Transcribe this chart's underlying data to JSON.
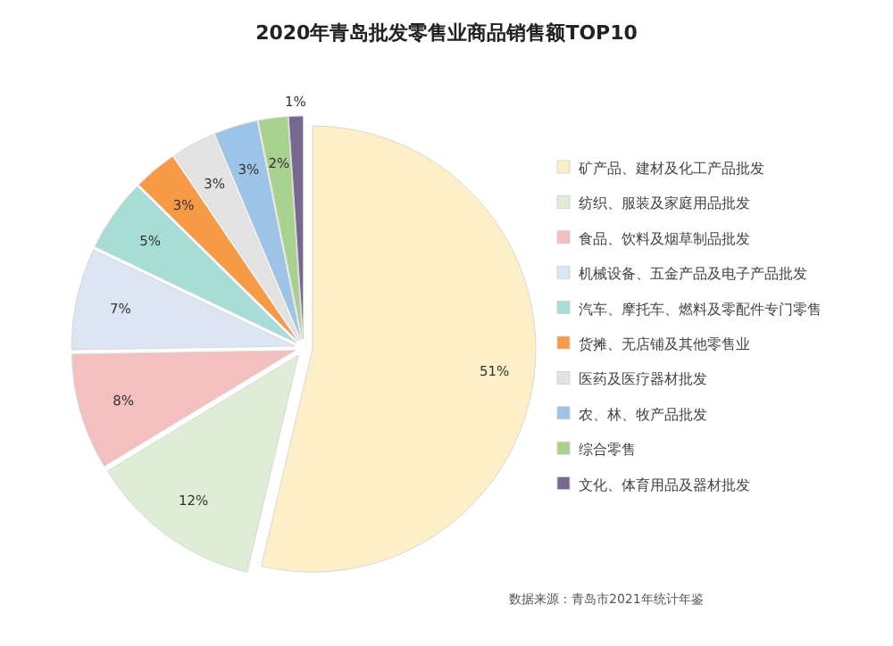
{
  "chart_data": {
    "type": "pie",
    "title": "2020年青岛批发零售业商品销售额TOP10",
    "categories": [
      "矿产品、建材及化工产品批发",
      "纺织、服装及家庭用品批发",
      "食品、饮料及烟草制品批发",
      "机械设备、五金产品及电子产品批发",
      "汽车、摩托车、燃料及零配件专门零售",
      "货摊、无店铺及其他零售业",
      "医药及医疗器材批发",
      "农、林、牧产品批发",
      "综合零售",
      "文化、体育用品及器材批发"
    ],
    "values": [
      51,
      12,
      8,
      7,
      5,
      3,
      3,
      3,
      2,
      1
    ],
    "value_labels": [
      "51%",
      "12%",
      "8%",
      "7%",
      "5%",
      "3%",
      "3%",
      "3%",
      "2%",
      "1%"
    ],
    "colors": [
      "#fdf0c8",
      "#e0edd6",
      "#f4c0bf",
      "#dce6f2",
      "#a6ddd6",
      "#f79a45",
      "#e3e3e3",
      "#9dc3e6",
      "#a9d18e",
      "#76688e"
    ],
    "legend": "right",
    "annotations": [
      "数据来源：青岛市2021年统计年鉴"
    ]
  }
}
